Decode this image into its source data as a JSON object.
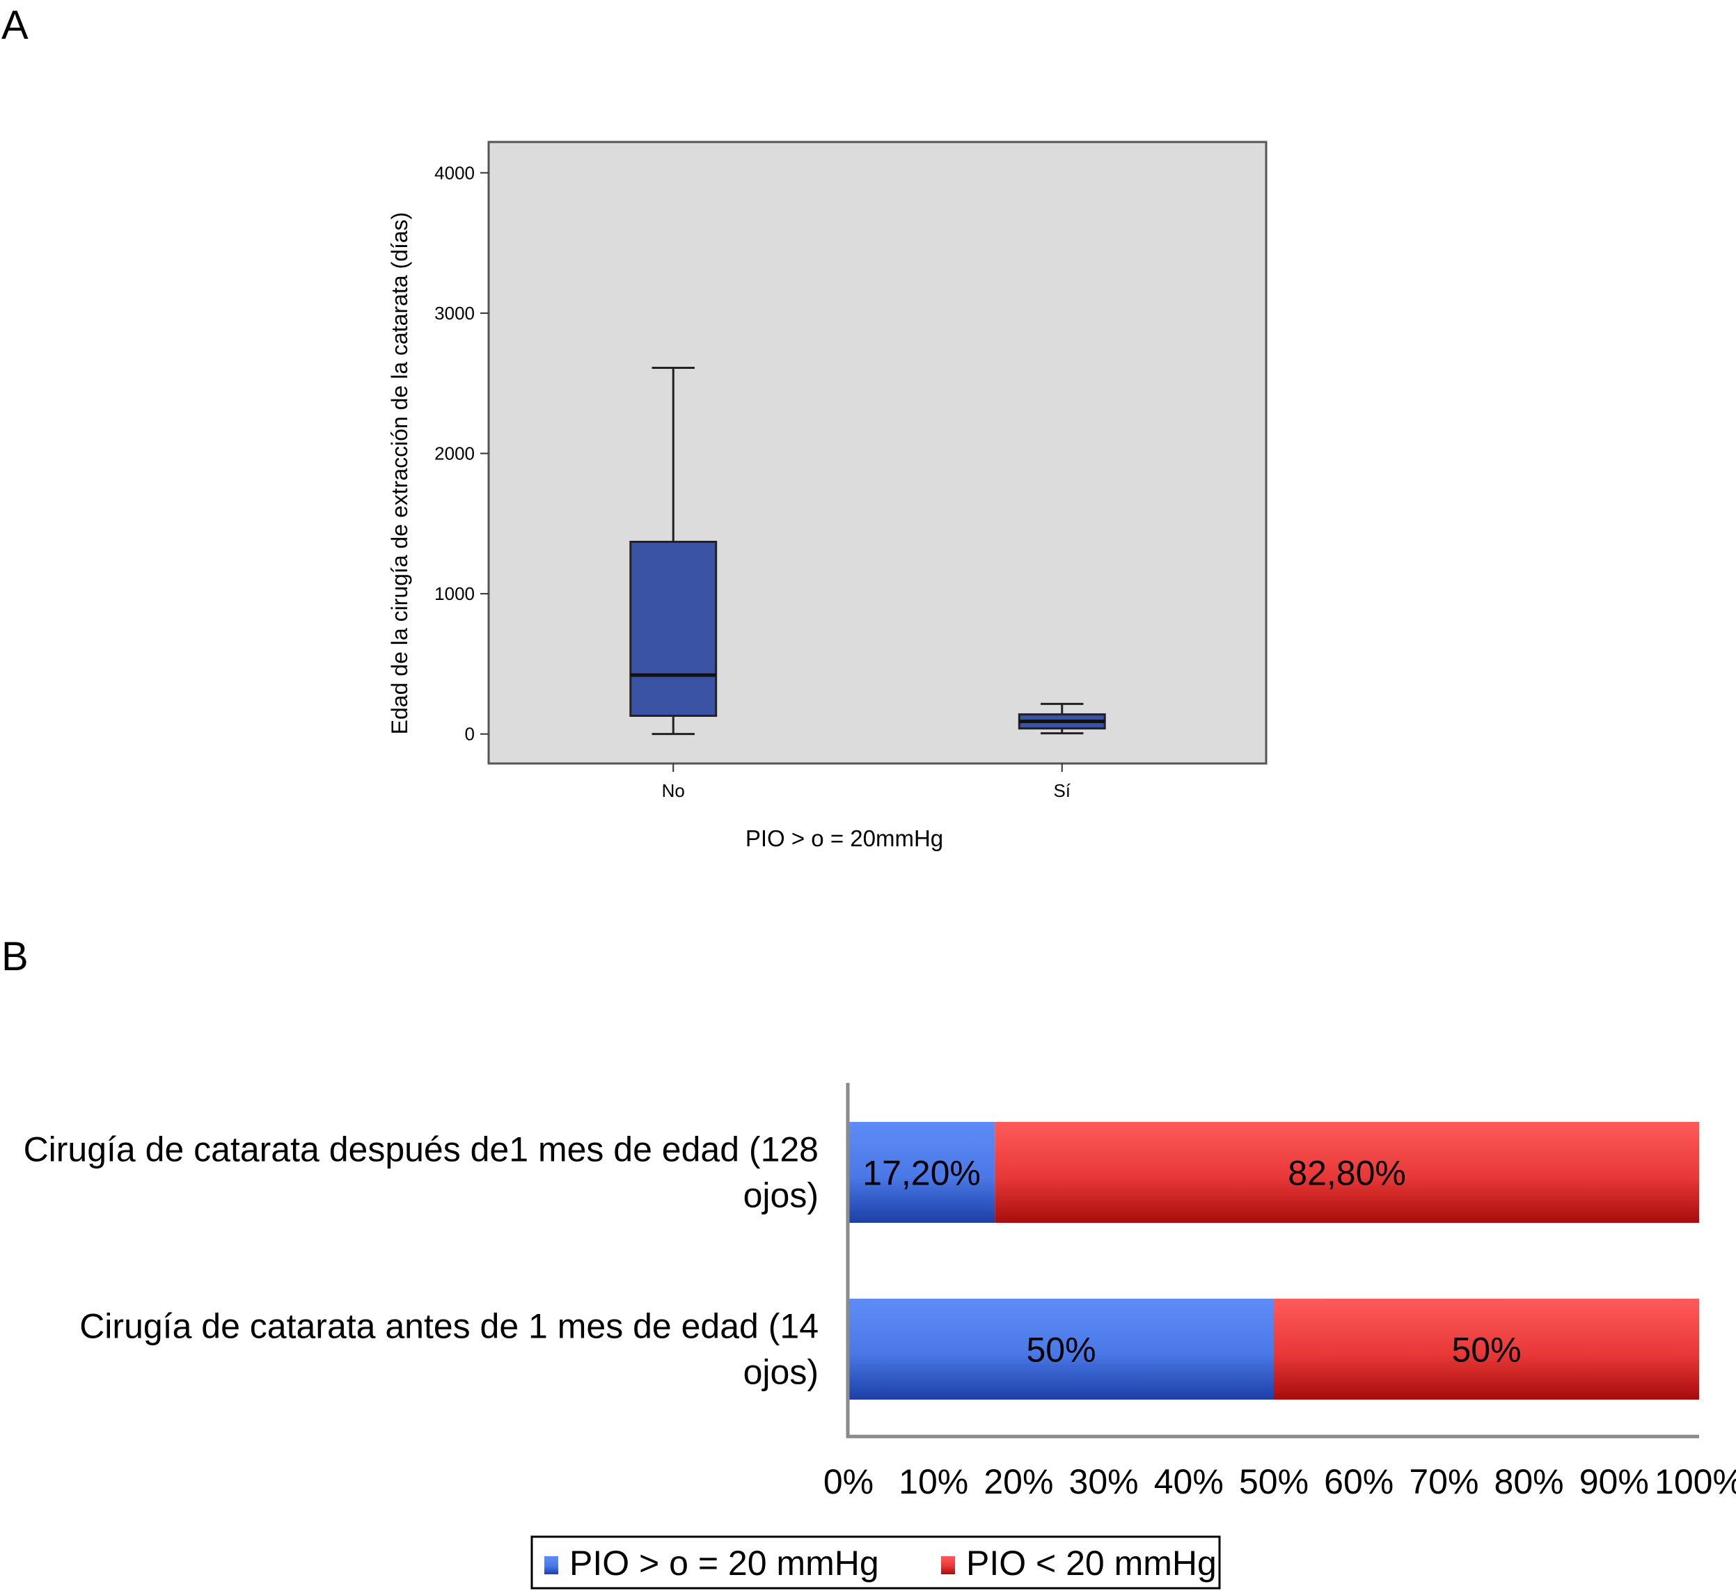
{
  "panels": {
    "a_letter": "A",
    "b_letter": "B"
  },
  "chart_data": [
    {
      "type": "box",
      "title": "",
      "xlabel": "PIO > o = 20mmHg",
      "ylabel": "Edad de la cirugía de extracción de la catarata (días)",
      "ylim": [
        -210,
        4220
      ],
      "yticks": [
        0,
        1000,
        2000,
        3000,
        4000
      ],
      "grid": false,
      "background": "#dcdcdc",
      "box_color": "#3b53a5",
      "categories": [
        "No",
        "Sí"
      ],
      "boxes": [
        {
          "category": "No",
          "min": 0,
          "q1": 130,
          "median": 420,
          "q3": 1370,
          "max": 2610
        },
        {
          "category": "Sí",
          "min": 5,
          "q1": 40,
          "median": 90,
          "q3": 140,
          "max": 215
        }
      ]
    },
    {
      "type": "bar",
      "orientation": "horizontal",
      "stacked": true,
      "xlim": [
        0,
        100
      ],
      "xticks": [
        "0%",
        "10%",
        "20%",
        "30%",
        "40%",
        "50%",
        "60%",
        "70%",
        "80%",
        "90%",
        "100%"
      ],
      "grid": false,
      "legend_position": "bottom",
      "categories": [
        "Cirugía de catarata después de1 mes de edad (128 ojos)",
        "Cirugía de catarata antes de 1 mes de edad (14 ojos)"
      ],
      "category_lines": [
        [
          "Cirugía de catarata después de1 mes de edad (128",
          "ojos)"
        ],
        [
          "Cirugía de catarata antes de 1 mes de edad (14",
          "ojos)"
        ]
      ],
      "series": [
        {
          "name": "PIO > o = 20 mmHg",
          "color": "#4a78e6",
          "values": [
            17.2,
            50
          ],
          "labels": [
            "17,20%",
            "50%"
          ]
        },
        {
          "name": "PIO < 20 mmHg",
          "color": "#e83838",
          "values": [
            82.8,
            50
          ],
          "labels": [
            "82,80%",
            "50%"
          ]
        }
      ]
    }
  ]
}
